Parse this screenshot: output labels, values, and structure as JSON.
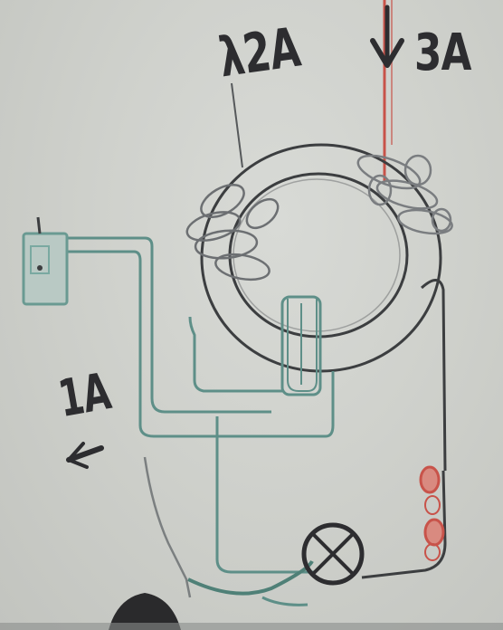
{
  "diagram": {
    "labels": {
      "top_winding": "λ2A",
      "right_current": "3A",
      "left_current": "1A"
    },
    "icons": {
      "down_arrow": "arrow-down-icon",
      "left_arrow": "arrow-left-icon",
      "lamp": "lamp-icon",
      "switch": "switch-icon",
      "fuse": "fuse-icon"
    },
    "colors": {
      "board": "#cfd1cc",
      "marker_dark": "#2d2d30",
      "marker_teal": "#5e8f88",
      "marker_red": "#c8534a",
      "marker_gray": "#7b7f80"
    }
  }
}
